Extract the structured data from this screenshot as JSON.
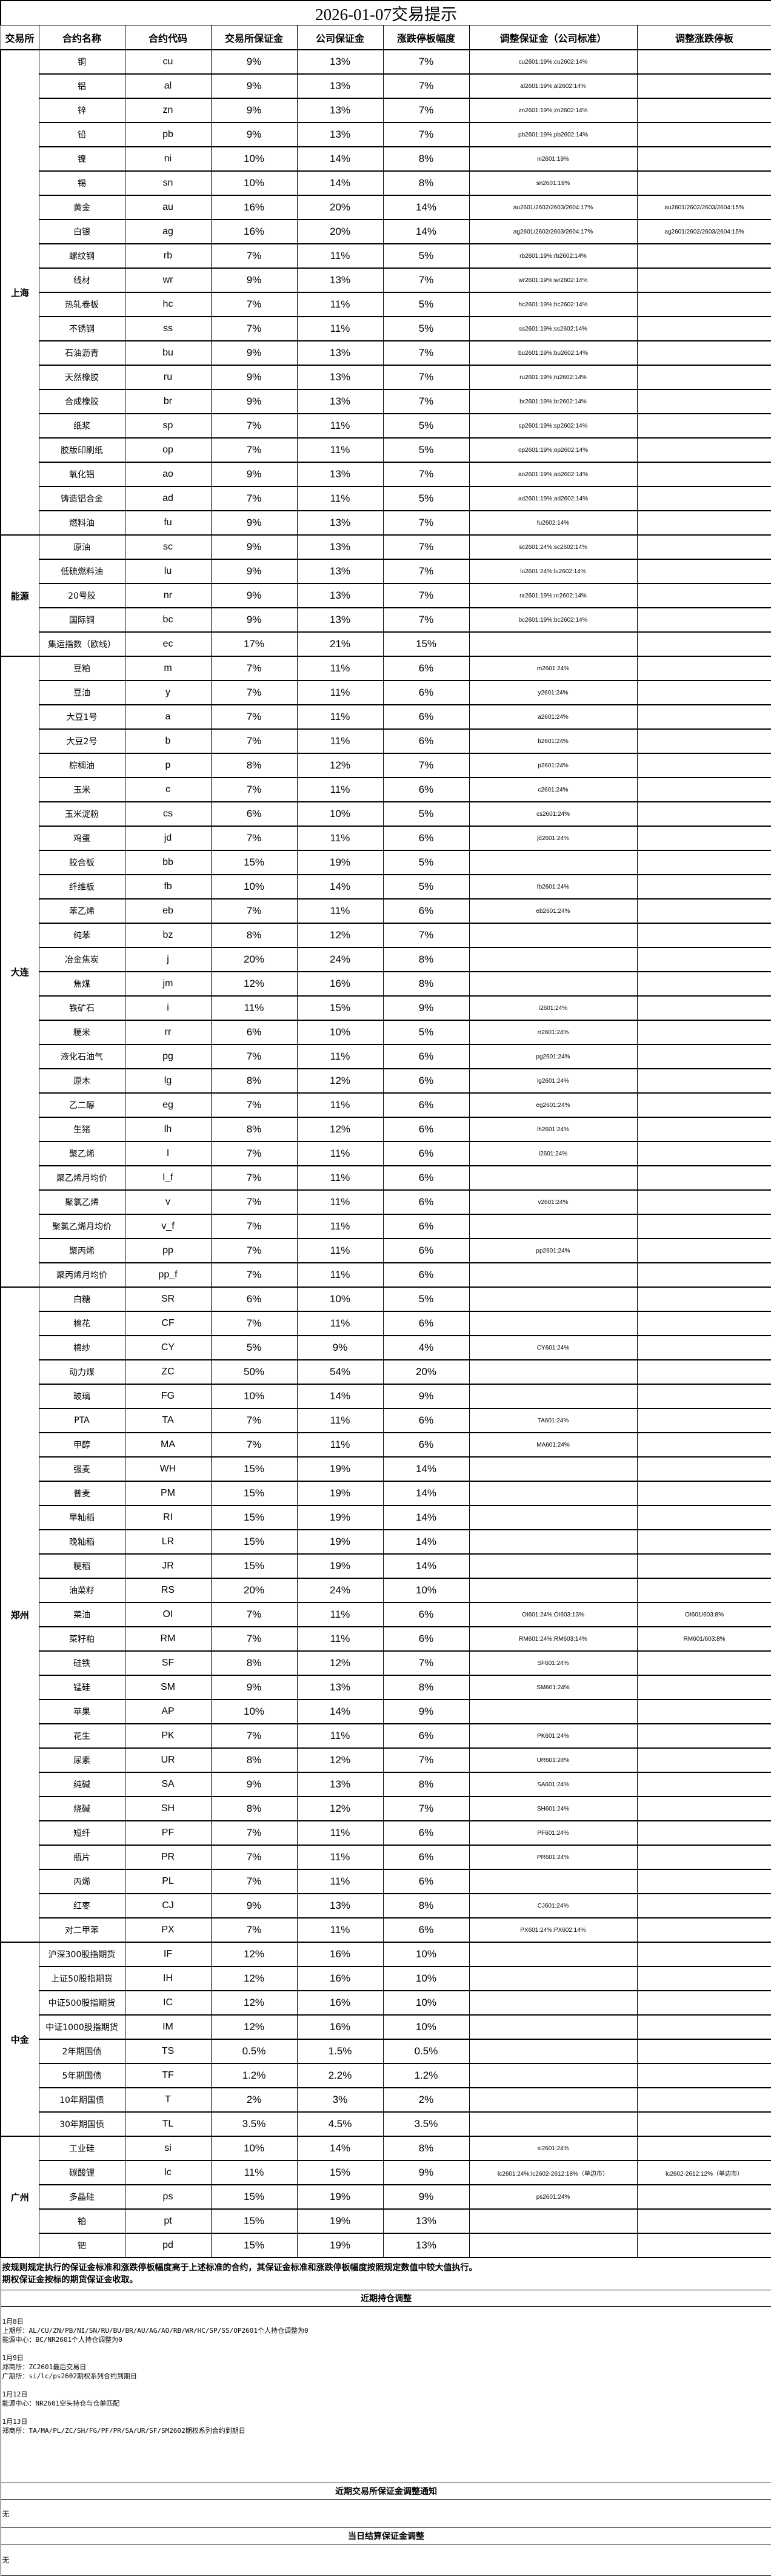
{
  "title": "2026-01-07交易提示",
  "headers": [
    "交易所",
    "合约名称",
    "合约代码",
    "交易所保证金",
    "公司保证金",
    "涨跌停板幅度",
    "调整保证金（公司标准）",
    "调整涨跌停板"
  ],
  "groups": [
    {
      "exchange": "上海",
      "rows": [
        [
          "铜",
          "cu",
          "9%",
          "13%",
          "7%",
          "cu2601:19%;cu2602:14%",
          ""
        ],
        [
          "铝",
          "al",
          "9%",
          "13%",
          "7%",
          "al2601:19%;al2602:14%",
          ""
        ],
        [
          "锌",
          "zn",
          "9%",
          "13%",
          "7%",
          "zn2601:19%;zn2602:14%",
          ""
        ],
        [
          "铅",
          "pb",
          "9%",
          "13%",
          "7%",
          "pb2601:19%;pb2602:14%",
          ""
        ],
        [
          "镍",
          "ni",
          "10%",
          "14%",
          "8%",
          "ni2601:19%",
          ""
        ],
        [
          "锡",
          "sn",
          "10%",
          "14%",
          "8%",
          "sn2601:19%",
          ""
        ],
        [
          "黄金",
          "au",
          "16%",
          "20%",
          "14%",
          "au2601/2602/2603/2604:17%",
          "au2601/2602/2603/2604:15%"
        ],
        [
          "白银",
          "ag",
          "16%",
          "20%",
          "14%",
          "ag2601/2602/2603/2604:17%",
          "ag2601/2602/2603/2604:15%"
        ],
        [
          "螺纹钢",
          "rb",
          "7%",
          "11%",
          "5%",
          "rb2601:19%;rb2602:14%",
          ""
        ],
        [
          "线材",
          "wr",
          "9%",
          "13%",
          "7%",
          "wr2601:19%;wr2602:14%",
          ""
        ],
        [
          "热轧卷板",
          "hc",
          "7%",
          "11%",
          "5%",
          "hc2601:19%;hc2602:14%",
          ""
        ],
        [
          "不锈钢",
          "ss",
          "7%",
          "11%",
          "5%",
          "ss2601:19%;ss2602:14%",
          ""
        ],
        [
          "石油沥青",
          "bu",
          "9%",
          "13%",
          "7%",
          "bu2601:19%;bu2602:14%",
          ""
        ],
        [
          "天然橡胶",
          "ru",
          "9%",
          "13%",
          "7%",
          "ru2601:19%;ru2602:14%",
          ""
        ],
        [
          "合成橡胶",
          "br",
          "9%",
          "13%",
          "7%",
          "br2601:19%;br2602:14%",
          ""
        ],
        [
          "纸浆",
          "sp",
          "7%",
          "11%",
          "5%",
          "sp2601:19%;sp2602:14%",
          ""
        ],
        [
          "胶版印刷纸",
          "op",
          "7%",
          "11%",
          "5%",
          "op2601:19%;op2602:14%",
          ""
        ],
        [
          "氧化铝",
          "ao",
          "9%",
          "13%",
          "7%",
          "ao2601:19%;ao2602:14%",
          ""
        ],
        [
          "铸造铝合金",
          "ad",
          "7%",
          "11%",
          "5%",
          "ad2601:19%;ad2602:14%",
          ""
        ],
        [
          "燃料油",
          "fu",
          "9%",
          "13%",
          "7%",
          "fu2602:14%",
          ""
        ]
      ]
    },
    {
      "exchange": "能源",
      "rows": [
        [
          "原油",
          "sc",
          "9%",
          "13%",
          "7%",
          "sc2601:24%;sc2602:14%",
          ""
        ],
        [
          "低硫燃料油",
          "lu",
          "9%",
          "13%",
          "7%",
          "lu2601:24%;lu2602:14%",
          ""
        ],
        [
          "20号胶",
          "nr",
          "9%",
          "13%",
          "7%",
          "nr2601:19%;nr2602:14%",
          ""
        ],
        [
          "国际铜",
          "bc",
          "9%",
          "13%",
          "7%",
          "bc2601:19%;bc2602:14%",
          ""
        ],
        [
          "集运指数（欧线）",
          "ec",
          "17%",
          "21%",
          "15%",
          "",
          ""
        ]
      ]
    },
    {
      "exchange": "大连",
      "rows": [
        [
          "豆粕",
          "m",
          "7%",
          "11%",
          "6%",
          "m2601:24%",
          ""
        ],
        [
          "豆油",
          "y",
          "7%",
          "11%",
          "6%",
          "y2601:24%",
          ""
        ],
        [
          "大豆1号",
          "a",
          "7%",
          "11%",
          "6%",
          "a2601:24%",
          ""
        ],
        [
          "大豆2号",
          "b",
          "7%",
          "11%",
          "6%",
          "b2601:24%",
          ""
        ],
        [
          "棕榈油",
          "p",
          "8%",
          "12%",
          "7%",
          "p2601:24%",
          ""
        ],
        [
          "玉米",
          "c",
          "7%",
          "11%",
          "6%",
          "c2601:24%",
          ""
        ],
        [
          "玉米淀粉",
          "cs",
          "6%",
          "10%",
          "5%",
          "cs2601:24%",
          ""
        ],
        [
          "鸡蛋",
          "jd",
          "7%",
          "11%",
          "6%",
          "jd2601:24%",
          ""
        ],
        [
          "胶合板",
          "bb",
          "15%",
          "19%",
          "5%",
          "",
          ""
        ],
        [
          "纤维板",
          "fb",
          "10%",
          "14%",
          "5%",
          "fb2601:24%",
          ""
        ],
        [
          "苯乙烯",
          "eb",
          "7%",
          "11%",
          "6%",
          "eb2601:24%",
          ""
        ],
        [
          "纯苯",
          "bz",
          "8%",
          "12%",
          "7%",
          "",
          ""
        ],
        [
          "冶金焦炭",
          "j",
          "20%",
          "24%",
          "8%",
          "",
          ""
        ],
        [
          "焦煤",
          "jm",
          "12%",
          "16%",
          "8%",
          "",
          ""
        ],
        [
          "铁矿石",
          "i",
          "11%",
          "15%",
          "9%",
          "i2601:24%",
          ""
        ],
        [
          "粳米",
          "rr",
          "6%",
          "10%",
          "5%",
          "rr2601:24%",
          ""
        ],
        [
          "液化石油气",
          "pg",
          "7%",
          "11%",
          "6%",
          "pg2601:24%",
          ""
        ],
        [
          "原木",
          "lg",
          "8%",
          "12%",
          "6%",
          "lg2601:24%",
          ""
        ],
        [
          "乙二醇",
          "eg",
          "7%",
          "11%",
          "6%",
          "eg2601:24%",
          ""
        ],
        [
          "生猪",
          "lh",
          "8%",
          "12%",
          "6%",
          "lh2601:24%",
          ""
        ],
        [
          "聚乙烯",
          "l",
          "7%",
          "11%",
          "6%",
          "l2601:24%",
          ""
        ],
        [
          "聚乙烯月均价",
          "l_f",
          "7%",
          "11%",
          "6%",
          "",
          ""
        ],
        [
          "聚氯乙烯",
          "v",
          "7%",
          "11%",
          "6%",
          "v2601:24%",
          ""
        ],
        [
          "聚氯乙烯月均价",
          "v_f",
          "7%",
          "11%",
          "6%",
          "",
          ""
        ],
        [
          "聚丙烯",
          "pp",
          "7%",
          "11%",
          "6%",
          "pp2601:24%",
          ""
        ],
        [
          "聚丙烯月均价",
          "pp_f",
          "7%",
          "11%",
          "6%",
          "",
          ""
        ]
      ]
    },
    {
      "exchange": "郑州",
      "rows": [
        [
          "白糖",
          "SR",
          "6%",
          "10%",
          "5%",
          "",
          ""
        ],
        [
          "棉花",
          "CF",
          "7%",
          "11%",
          "6%",
          "",
          ""
        ],
        [
          "棉纱",
          "CY",
          "5%",
          "9%",
          "4%",
          "CY601:24%",
          ""
        ],
        [
          "动力煤",
          "ZC",
          "50%",
          "54%",
          "20%",
          "",
          ""
        ],
        [
          "玻璃",
          "FG",
          "10%",
          "14%",
          "9%",
          "",
          ""
        ],
        [
          "PTA",
          "TA",
          "7%",
          "11%",
          "6%",
          "TA601:24%",
          ""
        ],
        [
          "甲醇",
          "MA",
          "7%",
          "11%",
          "6%",
          "MA601:24%",
          ""
        ],
        [
          "强麦",
          "WH",
          "15%",
          "19%",
          "14%",
          "",
          ""
        ],
        [
          "普麦",
          "PM",
          "15%",
          "19%",
          "14%",
          "",
          ""
        ],
        [
          "早籼稻",
          "RI",
          "15%",
          "19%",
          "14%",
          "",
          ""
        ],
        [
          "晚籼稻",
          "LR",
          "15%",
          "19%",
          "14%",
          "",
          ""
        ],
        [
          "粳稻",
          "JR",
          "15%",
          "19%",
          "14%",
          "",
          ""
        ],
        [
          "油菜籽",
          "RS",
          "20%",
          "24%",
          "10%",
          "",
          ""
        ],
        [
          "菜油",
          "OI",
          "7%",
          "11%",
          "6%",
          "OI601:24%;OI603:13%",
          "OI601/603:8%"
        ],
        [
          "菜籽粕",
          "RM",
          "7%",
          "11%",
          "6%",
          "RM601:24%;RM603:14%",
          "RM601/603:8%"
        ],
        [
          "硅铁",
          "SF",
          "8%",
          "12%",
          "7%",
          "SF601:24%",
          ""
        ],
        [
          "锰硅",
          "SM",
          "9%",
          "13%",
          "8%",
          "SM601:24%",
          ""
        ],
        [
          "苹果",
          "AP",
          "10%",
          "14%",
          "9%",
          "",
          ""
        ],
        [
          "花生",
          "PK",
          "7%",
          "11%",
          "6%",
          "PK601:24%",
          ""
        ],
        [
          "尿素",
          "UR",
          "8%",
          "12%",
          "7%",
          "UR601:24%",
          ""
        ],
        [
          "纯碱",
          "SA",
          "9%",
          "13%",
          "8%",
          "SA601:24%",
          ""
        ],
        [
          "烧碱",
          "SH",
          "8%",
          "12%",
          "7%",
          "SH601:24%",
          ""
        ],
        [
          "短纤",
          "PF",
          "7%",
          "11%",
          "6%",
          "PF601:24%",
          ""
        ],
        [
          "瓶片",
          "PR",
          "7%",
          "11%",
          "6%",
          "PR601:24%",
          ""
        ],
        [
          "丙烯",
          "PL",
          "7%",
          "11%",
          "6%",
          "",
          ""
        ],
        [
          "红枣",
          "CJ",
          "9%",
          "13%",
          "8%",
          "CJ601:24%",
          ""
        ],
        [
          "对二甲苯",
          "PX",
          "7%",
          "11%",
          "6%",
          "PX601:24%;PX602:14%",
          ""
        ]
      ]
    },
    {
      "exchange": "中金",
      "rows": [
        [
          "沪深300股指期货",
          "IF",
          "12%",
          "16%",
          "10%",
          "",
          ""
        ],
        [
          "上证50股指期货",
          "IH",
          "12%",
          "16%",
          "10%",
          "",
          ""
        ],
        [
          "中证500股指期货",
          "IC",
          "12%",
          "16%",
          "10%",
          "",
          ""
        ],
        [
          "中证1000股指期货",
          "IM",
          "12%",
          "16%",
          "10%",
          "",
          ""
        ],
        [
          "2年期国债",
          "TS",
          "0.5%",
          "1.5%",
          "0.5%",
          "",
          ""
        ],
        [
          "5年期国债",
          "TF",
          "1.2%",
          "2.2%",
          "1.2%",
          "",
          ""
        ],
        [
          "10年期国债",
          "T",
          "2%",
          "3%",
          "2%",
          "",
          ""
        ],
        [
          "30年期国债",
          "TL",
          "3.5%",
          "4.5%",
          "3.5%",
          "",
          ""
        ]
      ]
    },
    {
      "exchange": "广州",
      "rows": [
        [
          "工业硅",
          "si",
          "10%",
          "14%",
          "8%",
          "si2601:24%",
          ""
        ],
        [
          "碳酸锂",
          "lc",
          "11%",
          "15%",
          "9%",
          "lc2601:24%;lc2602-2612:18%（单边市）",
          "lc2602-2612:12%（单边市）"
        ],
        [
          "多晶硅",
          "ps",
          "15%",
          "19%",
          "9%",
          "ps2601:24%",
          ""
        ],
        [
          "铂",
          "pt",
          "15%",
          "19%",
          "13%",
          "",
          ""
        ],
        [
          "钯",
          "pd",
          "15%",
          "19%",
          "13%",
          "",
          ""
        ]
      ]
    }
  ],
  "note": {
    "line1": "按规则规定执行的保证金标准和涨跌停板幅度高于上述标准的合约，其保证金标准和涨跌停板幅度按照规定数值中较大值执行。",
    "line2": "期权保证金按标的期货保证金收取。"
  },
  "position_adjust": {
    "heading": "近期持仓调整",
    "blocks": [
      {
        "date": "1月8日",
        "lines": [
          "上期所：AL/CU/ZN/PB/NI/SN/RU/BU/BR/AU/AG/AO/RB/WR/HC/SP/SS/OP2601个人持仓调整为0",
          "能源中心：BC/NR2601个人持仓调整为0"
        ]
      },
      {
        "date": "1月9日",
        "lines": [
          "郑商所：ZC2601最后交易日",
          "广期所：si/lc/ps2602期权系列合约到期日"
        ]
      },
      {
        "date": "1月12日",
        "lines": [
          "能源中心：NR2601空头持仓与仓单匹配"
        ]
      },
      {
        "date": "1月13日",
        "lines": [
          "郑商所：TA/MA/PL/ZC/SH/FG/PF/PR/SA/UR/SF/SM2602期权系列合约到期日"
        ]
      }
    ]
  },
  "exchange_margin_notice": {
    "heading": "近期交易所保证金调整通知",
    "content": "无"
  },
  "settlement_margin": {
    "heading": "当日结算保证金调整",
    "content": "无"
  }
}
